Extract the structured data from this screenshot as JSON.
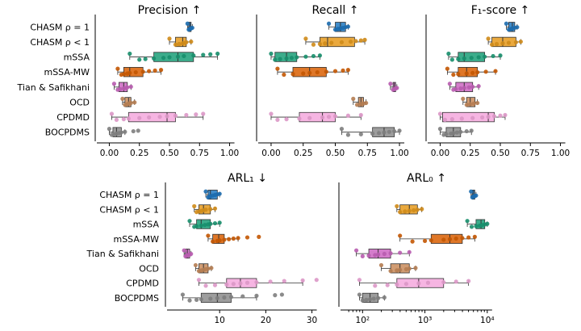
{
  "categories": [
    "CHASM ρ = 1",
    "CHASM ρ < 1",
    "mSSA",
    "mSSA-MW",
    "Tian & Safikhani",
    "OCD",
    "CPDMD",
    "BOCPDMS"
  ],
  "colors": [
    "#1f78c1",
    "#e69a1c",
    "#1a9e77",
    "#d95f02",
    "#cc66c2",
    "#c98b5b",
    "#f4a8dd",
    "#8c8c8c"
  ],
  "chart_data": [
    {
      "type": "box",
      "title": "Precision ↑",
      "xlim": [
        -0.05,
        1.05
      ],
      "xticks": [
        0.0,
        0.25,
        0.5,
        0.75,
        1.0
      ],
      "xticklabels": [
        "0.00",
        "0.25",
        "0.50",
        "0.75",
        "1.00"
      ],
      "xscale": "linear",
      "show_categories": true,
      "series": [
        {
          "q1": 0.66,
          "median": 0.67,
          "q3": 0.68,
          "whislo": 0.65,
          "whishi": 0.69,
          "points": [
            0.65,
            0.66,
            0.67,
            0.68,
            0.69
          ]
        },
        {
          "q1": 0.55,
          "median": 0.61,
          "q3": 0.64,
          "whislo": 0.5,
          "whishi": 0.68,
          "points": [
            0.5,
            0.55,
            0.58,
            0.61,
            0.63,
            0.64,
            0.68
          ]
        },
        {
          "q1": 0.37,
          "median": 0.57,
          "q3": 0.7,
          "whislo": 0.17,
          "whishi": 0.9,
          "points": [
            0.17,
            0.25,
            0.3,
            0.37,
            0.45,
            0.5,
            0.57,
            0.62,
            0.7,
            0.78,
            0.84,
            0.9
          ]
        },
        {
          "q1": 0.12,
          "median": 0.17,
          "q3": 0.28,
          "whislo": 0.07,
          "whishi": 0.43,
          "points": [
            0.07,
            0.1,
            0.12,
            0.15,
            0.17,
            0.22,
            0.28,
            0.33,
            0.38,
            0.43
          ]
        },
        {
          "q1": 0.08,
          "median": 0.12,
          "q3": 0.15,
          "whislo": 0.04,
          "whishi": 0.18,
          "points": [
            0.04,
            0.07,
            0.09,
            0.12,
            0.14,
            0.15,
            0.18
          ]
        },
        {
          "q1": 0.13,
          "median": 0.16,
          "q3": 0.18,
          "whislo": 0.11,
          "whishi": 0.21,
          "points": [
            0.11,
            0.13,
            0.15,
            0.16,
            0.18,
            0.21
          ]
        },
        {
          "q1": 0.16,
          "median": 0.48,
          "q3": 0.55,
          "whislo": 0.02,
          "whishi": 0.78,
          "points": [
            0.02,
            0.06,
            0.12,
            0.16,
            0.25,
            0.33,
            0.42,
            0.48,
            0.55,
            0.64,
            0.72,
            0.78
          ]
        },
        {
          "q1": 0.03,
          "median": 0.06,
          "q3": 0.1,
          "whislo": 0.0,
          "whishi": 0.13,
          "points": [
            0.0,
            0.02,
            0.04,
            0.06,
            0.08,
            0.1,
            0.13,
            0.2,
            0.24
          ]
        }
      ]
    },
    {
      "type": "box",
      "title": "Recall ↑",
      "xlim": [
        -0.05,
        1.05
      ],
      "xticks": [
        0.0,
        0.25,
        0.5,
        0.75,
        1.0
      ],
      "xticklabels": [
        "0.00",
        "0.25",
        "0.50",
        "0.75",
        "1.00"
      ],
      "xscale": "linear",
      "show_categories": false,
      "series": [
        {
          "q1": 0.5,
          "median": 0.54,
          "q3": 0.58,
          "whislo": 0.45,
          "whishi": 0.6,
          "points": [
            0.45,
            0.5,
            0.52,
            0.54,
            0.56,
            0.58,
            0.6
          ]
        },
        {
          "q1": 0.38,
          "median": 0.44,
          "q3": 0.65,
          "whislo": 0.27,
          "whishi": 0.73,
          "points": [
            0.27,
            0.33,
            0.38,
            0.42,
            0.47,
            0.55,
            0.62,
            0.66,
            0.7,
            0.73
          ]
        },
        {
          "q1": 0.03,
          "median": 0.12,
          "q3": 0.2,
          "whislo": 0.0,
          "whishi": 0.38,
          "points": [
            0.0,
            0.03,
            0.07,
            0.12,
            0.16,
            0.2,
            0.27,
            0.33,
            0.38
          ]
        },
        {
          "q1": 0.17,
          "median": 0.3,
          "q3": 0.43,
          "whislo": 0.05,
          "whishi": 0.6,
          "points": [
            0.05,
            0.1,
            0.17,
            0.25,
            0.3,
            0.36,
            0.43,
            0.5,
            0.56,
            0.6
          ]
        },
        {
          "q1": 0.95,
          "median": 0.96,
          "q3": 0.97,
          "whislo": 0.93,
          "whishi": 0.98,
          "points": [
            0.93,
            0.95,
            0.96,
            0.97,
            0.98
          ]
        },
        {
          "q1": 0.68,
          "median": 0.7,
          "q3": 0.72,
          "whislo": 0.64,
          "whishi": 0.74,
          "points": [
            0.64,
            0.67,
            0.7,
            0.72,
            0.74
          ]
        },
        {
          "q1": 0.22,
          "median": 0.4,
          "q3": 0.5,
          "whislo": 0.0,
          "whishi": 0.7,
          "points": [
            0.0,
            0.05,
            0.12,
            0.22,
            0.3,
            0.4,
            0.45,
            0.5,
            0.6,
            0.7
          ]
        },
        {
          "q1": 0.79,
          "median": 0.88,
          "q3": 0.96,
          "whislo": 0.55,
          "whishi": 1.0,
          "points": [
            0.55,
            0.6,
            0.7,
            0.79,
            0.84,
            0.88,
            0.92,
            0.96,
            1.0
          ]
        }
      ]
    },
    {
      "type": "box",
      "title": "F₁-score ↑",
      "xlim": [
        -0.05,
        1.05
      ],
      "xticks": [
        0.0,
        0.25,
        0.5,
        0.75,
        1.0
      ],
      "xticklabels": [
        "0.00",
        "0.25",
        "0.50",
        "0.75",
        "1.00"
      ],
      "xscale": "linear",
      "show_categories": false,
      "series": [
        {
          "q1": 0.57,
          "median": 0.6,
          "q3": 0.62,
          "whislo": 0.55,
          "whishi": 0.64,
          "points": [
            0.55,
            0.57,
            0.59,
            0.6,
            0.62,
            0.64
          ]
        },
        {
          "q1": 0.43,
          "median": 0.52,
          "q3": 0.63,
          "whislo": 0.4,
          "whishi": 0.67,
          "points": [
            0.4,
            0.43,
            0.47,
            0.52,
            0.57,
            0.63,
            0.67
          ]
        },
        {
          "q1": 0.15,
          "median": 0.2,
          "q3": 0.37,
          "whislo": 0.07,
          "whishi": 0.5,
          "points": [
            0.07,
            0.1,
            0.15,
            0.2,
            0.26,
            0.32,
            0.37,
            0.44,
            0.5
          ]
        },
        {
          "q1": 0.15,
          "median": 0.22,
          "q3": 0.31,
          "whislo": 0.06,
          "whishi": 0.46,
          "points": [
            0.06,
            0.11,
            0.15,
            0.22,
            0.27,
            0.31,
            0.38,
            0.46
          ]
        },
        {
          "q1": 0.13,
          "median": 0.2,
          "q3": 0.27,
          "whislo": 0.08,
          "whishi": 0.32,
          "points": [
            0.08,
            0.11,
            0.13,
            0.17,
            0.2,
            0.24,
            0.27,
            0.32
          ]
        },
        {
          "q1": 0.22,
          "median": 0.25,
          "q3": 0.29,
          "whislo": 0.19,
          "whishi": 0.31,
          "points": [
            0.19,
            0.22,
            0.25,
            0.28,
            0.31
          ]
        },
        {
          "q1": 0.02,
          "median": 0.4,
          "q3": 0.45,
          "whislo": 0.0,
          "whishi": 0.54,
          "points": [
            0.0,
            0.04,
            0.1,
            0.18,
            0.27,
            0.35,
            0.4,
            0.45,
            0.5,
            0.54
          ]
        },
        {
          "q1": 0.05,
          "median": 0.11,
          "q3": 0.17,
          "whislo": 0.0,
          "whishi": 0.26,
          "points": [
            0.0,
            0.03,
            0.05,
            0.09,
            0.11,
            0.14,
            0.17,
            0.22,
            0.26
          ]
        }
      ]
    },
    {
      "type": "box",
      "title": "ARL₁ ↓",
      "xlim": [
        0,
        32
      ],
      "xticks": [
        10,
        20,
        30
      ],
      "xticklabels": [
        "10",
        "20",
        "30"
      ],
      "xscale": "linear",
      "show_categories": true,
      "series": [
        {
          "q1": 7.5,
          "median": 8.0,
          "q3": 9.5,
          "whislo": 7.0,
          "whishi": 10.0,
          "points": [
            7.0,
            7.5,
            7.8,
            8.0,
            8.5,
            9.0,
            9.5,
            10.0
          ]
        },
        {
          "q1": 5.5,
          "median": 6.5,
          "q3": 8.0,
          "whislo": 4.5,
          "whishi": 9.0,
          "points": [
            4.5,
            5.0,
            5.5,
            6.0,
            6.5,
            7.0,
            8.0,
            9.0
          ]
        },
        {
          "q1": 5.0,
          "median": 6.0,
          "q3": 8.0,
          "whislo": 3.5,
          "whishi": 10.0,
          "points": [
            3.5,
            4.5,
            5.0,
            6.0,
            6.8,
            7.5,
            8.0,
            9.0,
            10.0
          ]
        },
        {
          "q1": 8.5,
          "median": 9.8,
          "q3": 11.0,
          "whislo": 7.5,
          "whishi": 14.0,
          "points": [
            7.5,
            8.5,
            9.5,
            10.0,
            11.0,
            12.0,
            13.0,
            14.0,
            16.0,
            18.5
          ]
        },
        {
          "q1": 2.6,
          "median": 3.0,
          "q3": 3.5,
          "whislo": 2.3,
          "whishi": 3.8,
          "points": [
            2.3,
            2.6,
            2.9,
            3.2,
            3.5,
            3.8
          ]
        },
        {
          "q1": 5.5,
          "median": 6.5,
          "q3": 7.5,
          "whislo": 4.8,
          "whishi": 8.2,
          "points": [
            4.8,
            5.5,
            6.0,
            6.5,
            7.0,
            7.5,
            8.2
          ]
        },
        {
          "q1": 11.5,
          "median": 14.5,
          "q3": 18.0,
          "whislo": 5.5,
          "whishi": 28.0,
          "points": [
            5.5,
            7.0,
            9.0,
            11.5,
            13.0,
            14.5,
            16.0,
            18.0,
            21.0,
            24.0,
            28.0,
            31.0
          ]
        },
        {
          "q1": 6.0,
          "median": 9.5,
          "q3": 12.5,
          "whislo": 2.0,
          "whishi": 18.0,
          "points": [
            2.0,
            3.5,
            5.0,
            6.0,
            8.0,
            9.5,
            11.0,
            12.5,
            15.0,
            18.0,
            22.0,
            23.5
          ]
        }
      ]
    },
    {
      "type": "box",
      "title": "ARL₀ ↑",
      "xlim": [
        1.75,
        4.3
      ],
      "xticks": [
        2,
        3,
        4
      ],
      "xticklabels": [
        "10²",
        "10³",
        "10⁴"
      ],
      "xscale": "log10",
      "show_categories": false,
      "series": [
        {
          "q1": 3.76,
          "median": 3.78,
          "q3": 3.8,
          "whislo": 3.74,
          "whishi": 3.82,
          "points": [
            3.74,
            3.76,
            3.78,
            3.8,
            3.82
          ]
        },
        {
          "q1": 2.6,
          "median": 2.75,
          "q3": 2.88,
          "whislo": 2.55,
          "whishi": 2.95,
          "points": [
            2.55,
            2.6,
            2.68,
            2.75,
            2.82,
            2.88,
            2.95
          ]
        },
        {
          "q1": 3.82,
          "median": 3.9,
          "q3": 3.96,
          "whislo": 3.68,
          "whishi": 4.0,
          "points": [
            3.68,
            3.75,
            3.82,
            3.88,
            3.92,
            3.96,
            4.0
          ]
        },
        {
          "q1": 3.1,
          "median": 3.4,
          "q3": 3.6,
          "whislo": 2.6,
          "whishi": 3.8,
          "points": [
            2.6,
            2.8,
            3.0,
            3.1,
            3.3,
            3.4,
            3.5,
            3.6,
            3.7,
            3.8
          ]
        },
        {
          "q1": 2.1,
          "median": 2.25,
          "q3": 2.45,
          "whislo": 1.9,
          "whishi": 2.75,
          "points": [
            1.9,
            2.0,
            2.1,
            2.2,
            2.25,
            2.35,
            2.45,
            2.6,
            2.75
          ]
        },
        {
          "q1": 2.45,
          "median": 2.6,
          "q3": 2.75,
          "whislo": 2.3,
          "whishi": 2.85,
          "points": [
            2.3,
            2.45,
            2.55,
            2.6,
            2.7,
            2.75,
            2.85
          ]
        },
        {
          "q1": 2.55,
          "median": 2.9,
          "q3": 3.3,
          "whislo": 1.95,
          "whishi": 3.7,
          "points": [
            1.95,
            2.2,
            2.4,
            2.55,
            2.7,
            2.9,
            3.05,
            3.3,
            3.5,
            3.7
          ]
        },
        {
          "q1": 2.0,
          "median": 2.12,
          "q3": 2.25,
          "whislo": 1.95,
          "whishi": 2.35,
          "points": [
            1.95,
            2.0,
            2.06,
            2.12,
            2.18,
            2.25,
            2.35
          ]
        }
      ]
    }
  ]
}
